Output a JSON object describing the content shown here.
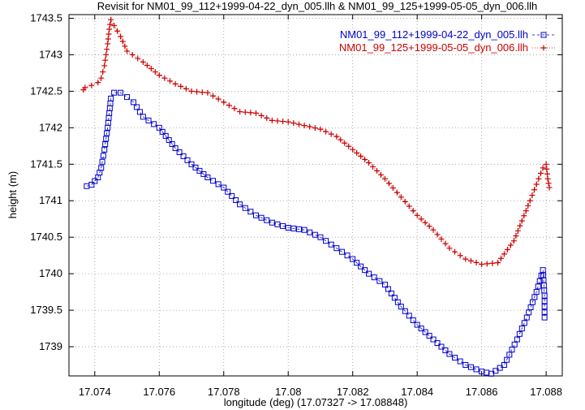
{
  "chart_data": {
    "type": "scatter",
    "title": "Revisit for NM01_99_112+1999-04-22_dyn_005.llh & NM01_99_125+1999-05-05_dyn_006.llh",
    "xlabel": "longitude (deg) (17.07327 -> 17.08848)",
    "ylabel": "height (m)",
    "xlim": [
      17.0732,
      17.0885
    ],
    "ylim": [
      1738.6,
      1743.55
    ],
    "xticks": [
      17.074,
      17.076,
      17.078,
      17.08,
      17.082,
      17.084,
      17.086,
      17.088
    ],
    "xtick_labels": [
      "17.074",
      "17.076",
      "17.078",
      "17.08",
      "17.082",
      "17.084",
      "17.086",
      "17.088"
    ],
    "yticks": [
      1739,
      1739.5,
      1740,
      1740.5,
      1741,
      1741.5,
      1742,
      1742.5,
      1743,
      1743.5
    ],
    "ytick_labels": [
      "1739",
      "1739.5",
      "1740",
      "1740.5",
      "1741",
      "1741.5",
      "1742",
      "1742.5",
      "1743",
      "1743.5"
    ],
    "grid": true,
    "legend_position": "top-right",
    "series": [
      {
        "name": "NM01_99_112+1999-04-22_dyn_005.llh",
        "color": "#0000cc",
        "marker": "square",
        "line": "dashed",
        "keypoints": [
          [
            17.07375,
            1741.2
          ],
          [
            17.0739,
            1741.22
          ],
          [
            17.0741,
            1741.32
          ],
          [
            17.0742,
            1741.45
          ],
          [
            17.0743,
            1741.7
          ],
          [
            17.0744,
            1742.0
          ],
          [
            17.07445,
            1742.2
          ],
          [
            17.0745,
            1742.4
          ],
          [
            17.0746,
            1742.48
          ],
          [
            17.0748,
            1742.48
          ],
          [
            17.075,
            1742.42
          ],
          [
            17.0752,
            1742.35
          ],
          [
            17.0755,
            1742.15
          ],
          [
            17.076,
            1742.0
          ],
          [
            17.0765,
            1741.72
          ],
          [
            17.077,
            1741.5
          ],
          [
            17.0775,
            1741.32
          ],
          [
            17.078,
            1741.18
          ],
          [
            17.0785,
            1740.95
          ],
          [
            17.079,
            1740.8
          ],
          [
            17.0795,
            1740.7
          ],
          [
            17.08,
            1740.63
          ],
          [
            17.0805,
            1740.6
          ],
          [
            17.081,
            1740.5
          ],
          [
            17.0815,
            1740.35
          ],
          [
            17.082,
            1740.2
          ],
          [
            17.0825,
            1740.0
          ],
          [
            17.083,
            1739.85
          ],
          [
            17.0835,
            1739.55
          ],
          [
            17.084,
            1739.3
          ],
          [
            17.0845,
            1739.1
          ],
          [
            17.085,
            1738.9
          ],
          [
            17.0855,
            1738.75
          ],
          [
            17.086,
            1738.66
          ],
          [
            17.0863,
            1738.63
          ],
          [
            17.0867,
            1738.75
          ],
          [
            17.0871,
            1739.1
          ],
          [
            17.0874,
            1739.4
          ],
          [
            17.0877,
            1739.75
          ],
          [
            17.0879,
            1740.05
          ],
          [
            17.08795,
            1739.7
          ],
          [
            17.08795,
            1739.4
          ]
        ]
      },
      {
        "name": "NM01_99_125+1999-05-05_dyn_006.llh",
        "color": "#cc0000",
        "marker": "plus",
        "line": "dotted",
        "keypoints": [
          [
            17.07365,
            1742.52
          ],
          [
            17.0737,
            1742.55
          ],
          [
            17.0739,
            1742.58
          ],
          [
            17.0741,
            1742.62
          ],
          [
            17.0742,
            1742.68
          ],
          [
            17.0743,
            1742.85
          ],
          [
            17.07435,
            1743.0
          ],
          [
            17.0744,
            1743.15
          ],
          [
            17.07445,
            1743.35
          ],
          [
            17.0745,
            1743.48
          ],
          [
            17.0746,
            1743.4
          ],
          [
            17.0748,
            1743.25
          ],
          [
            17.075,
            1743.05
          ],
          [
            17.0755,
            1742.9
          ],
          [
            17.076,
            1742.72
          ],
          [
            17.0765,
            1742.6
          ],
          [
            17.077,
            1742.5
          ],
          [
            17.0775,
            1742.48
          ],
          [
            17.078,
            1742.35
          ],
          [
            17.0785,
            1742.22
          ],
          [
            17.079,
            1742.2
          ],
          [
            17.0795,
            1742.1
          ],
          [
            17.08,
            1742.08
          ],
          [
            17.0805,
            1742.03
          ],
          [
            17.081,
            1741.98
          ],
          [
            17.0815,
            1741.88
          ],
          [
            17.082,
            1741.7
          ],
          [
            17.0825,
            1741.52
          ],
          [
            17.083,
            1741.3
          ],
          [
            17.0835,
            1741.05
          ],
          [
            17.084,
            1740.8
          ],
          [
            17.0845,
            1740.6
          ],
          [
            17.085,
            1740.35
          ],
          [
            17.0855,
            1740.2
          ],
          [
            17.086,
            1740.13
          ],
          [
            17.0865,
            1740.15
          ],
          [
            17.087,
            1740.45
          ],
          [
            17.0875,
            1741.0
          ],
          [
            17.0879,
            1741.45
          ],
          [
            17.088,
            1741.5
          ],
          [
            17.08805,
            1741.3
          ],
          [
            17.0881,
            1741.18
          ]
        ]
      }
    ]
  }
}
